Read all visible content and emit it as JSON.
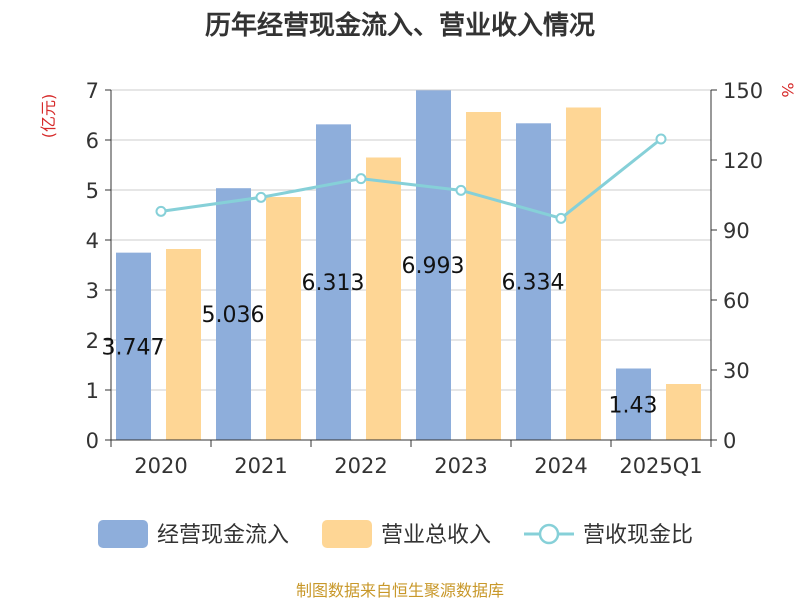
{
  "chart_data": {
    "type": "bar",
    "title": "历年经营现金流入、营业收入情况",
    "categories": [
      "2020",
      "2021",
      "2022",
      "2023",
      "2024",
      "2025Q1"
    ],
    "y_left": {
      "unit": "(亿元)",
      "range": [
        0,
        7
      ],
      "ticks": [
        "0",
        "1",
        "2",
        "3",
        "4",
        "5",
        "6",
        "7"
      ]
    },
    "y_right": {
      "unit": "%",
      "range": [
        0,
        150
      ],
      "ticks": [
        "0",
        "30",
        "60",
        "90",
        "120",
        "150"
      ]
    },
    "series": [
      {
        "name": "经营现金流入",
        "kind": "bar",
        "axis": "left",
        "color": "#8eaedb",
        "values": [
          3.747,
          5.036,
          6.313,
          6.993,
          6.334,
          1.43
        ],
        "labels": [
          "3.747",
          "5.036",
          "6.313",
          "6.993",
          "6.334",
          "1.43"
        ]
      },
      {
        "name": "营业总收入",
        "kind": "bar",
        "axis": "left",
        "color": "#fed695",
        "values": [
          3.82,
          4.86,
          5.65,
          6.56,
          6.65,
          1.12
        ]
      },
      {
        "name": "营收现金比",
        "kind": "line",
        "axis": "right",
        "color": "#86d0d8",
        "values": [
          98,
          104,
          112,
          107,
          95,
          129
        ]
      }
    ],
    "grid": true,
    "legend_position": "bottom",
    "unit_color": "#d62a2a"
  },
  "source": {
    "text": "制图数据来自恒生聚源数据库",
    "color": "#c8982a"
  }
}
